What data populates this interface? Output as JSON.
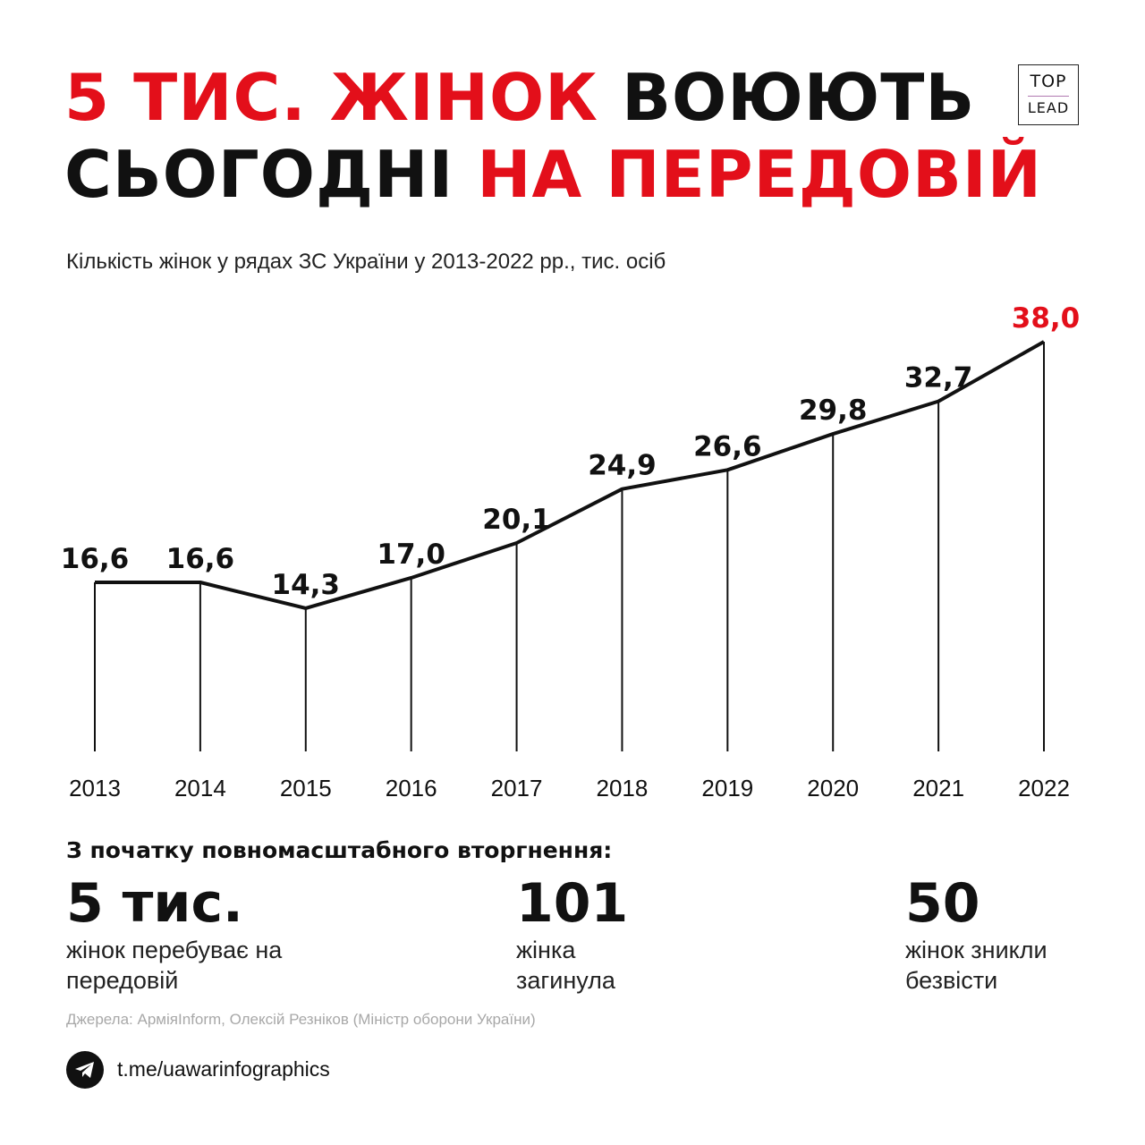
{
  "headline": {
    "part1": "5 ТИС. ЖІНОК",
    "part2": "ВОЮЮТЬ",
    "part3": "СЬОГОДНІ",
    "part4": "НА ПЕРЕДОВІЙ"
  },
  "logo": {
    "line1": "TOP",
    "line2": "LEAD"
  },
  "subtitle": "Кількість жінок у рядах ЗС України у 2013-2022 рр., тис. осіб",
  "chart_data": {
    "type": "line",
    "title": "",
    "xlabel": "",
    "ylabel": "",
    "categories": [
      "2013",
      "2014",
      "2015",
      "2016",
      "2017",
      "2018",
      "2019",
      "2020",
      "2021",
      "2022"
    ],
    "values": [
      16.6,
      16.6,
      14.3,
      17.0,
      20.1,
      24.9,
      26.6,
      29.8,
      32.7,
      38.0
    ],
    "value_labels": [
      "16,6",
      "16,6",
      "14,3",
      "17,0",
      "20,1",
      "24,9",
      "26,6",
      "29,8",
      "32,7",
      "38,0"
    ],
    "highlight_index": 9,
    "grid": false,
    "legend": "none"
  },
  "stats": {
    "title": "З початку повномасштабного вторгнення:",
    "items": [
      {
        "number": "5 тис.",
        "desc": "жінок перебуває на передовій"
      },
      {
        "number": "101",
        "desc": "жінка загинула"
      },
      {
        "number": "50",
        "desc": "жінок зникли безвісти"
      }
    ]
  },
  "sources": "Джерела: АрміяInform, Олексій Резніков (Міністр оборони України)",
  "telegram": {
    "link": "t.me/uawarinfographics",
    "icon": "telegram-icon"
  },
  "colors": {
    "accent": "#e30f1a",
    "text": "#111111",
    "muted": "#a8a8a8"
  }
}
